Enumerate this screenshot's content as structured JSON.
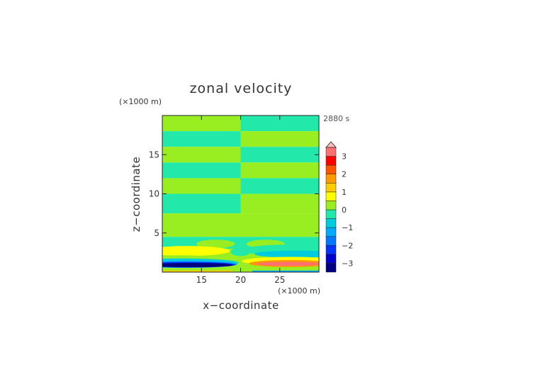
{
  "chart_data": {
    "type": "heatmap",
    "title": "zonal velocity",
    "xlabel": "x−coordinate",
    "ylabel": "z−coordinate",
    "x_unit": "(×1000 m)",
    "y_unit": "(×1000 m)",
    "time_label": "2880 s",
    "xlim": [
      10,
      30
    ],
    "ylim": [
      0,
      20
    ],
    "x_ticks": [
      "15",
      "20",
      "25"
    ],
    "y_ticks": [
      "5",
      "10",
      "15"
    ],
    "colorbar": {
      "tick_labels": [
        "3",
        "2",
        "1",
        "0",
        "−1",
        "−2",
        "−3"
      ],
      "levels": [
        -3.5,
        -3,
        -2.5,
        -2,
        -1.5,
        -1,
        -0.5,
        0,
        0.5,
        1,
        1.5,
        2,
        2.5,
        3,
        3.5
      ],
      "colors": [
        "#000080",
        "#0000cd",
        "#0033ff",
        "#0077ff",
        "#00aaff",
        "#00ccdd",
        "#22e8aa",
        "#99ee22",
        "#ffff00",
        "#ffcc00",
        "#ff9900",
        "#ff5500",
        "#ff0000",
        "#ff7070",
        "#ffbbbb"
      ],
      "extend": "max"
    },
    "field_description": {
      "upper_bands": [
        {
          "z": [
            18.0,
            20.0
          ],
          "left_value": 0.25,
          "right_value": -0.25
        },
        {
          "z": [
            16.0,
            18.0
          ],
          "left_value": -0.25,
          "right_value": 0.25
        },
        {
          "z": [
            14.0,
            16.0
          ],
          "left_value": 0.25,
          "right_value": -0.25
        },
        {
          "z": [
            12.0,
            14.0
          ],
          "left_value": -0.25,
          "right_value": 0.25
        },
        {
          "z": [
            10.0,
            12.0
          ],
          "left_value": 0.25,
          "right_value": -0.25
        },
        {
          "z": [
            7.5,
            10.0
          ],
          "left_value": -0.25,
          "right_value": 0.25
        },
        {
          "z": [
            4.5,
            7.5
          ],
          "left_value": 0.25,
          "right_value": 0.25
        }
      ],
      "near_surface_extremes": {
        "left_min": -3.5,
        "right_max": 3.2,
        "z": 1.0
      }
    }
  }
}
